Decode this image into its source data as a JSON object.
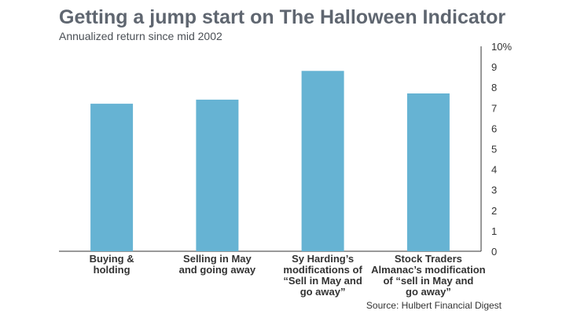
{
  "chart_data": {
    "type": "bar",
    "title": "Getting a jump start on The Halloween Indicator",
    "subtitle": "Annualized return since mid 2002",
    "categories": [
      [
        "Buying &",
        "holding"
      ],
      [
        "Selling in May",
        "and going away"
      ],
      [
        "Sy Harding’s",
        "modifications of",
        "“Sell in May and",
        "go away”"
      ],
      [
        "Stock Traders",
        "Almanac’s modification",
        "of “sell in May and",
        "go away”"
      ]
    ],
    "values": [
      7.2,
      7.4,
      8.8,
      7.7
    ],
    "ylim": [
      0,
      10
    ],
    "yticks": [
      "0",
      "1",
      "2",
      "3",
      "4",
      "5",
      "6",
      "7",
      "8",
      "9",
      "10%"
    ],
    "xlabel": "",
    "ylabel": "",
    "y_axis_side": "right",
    "grid": false,
    "bar_color": "#66b3d3",
    "source": "Source: Hulbert Financial Digest"
  }
}
